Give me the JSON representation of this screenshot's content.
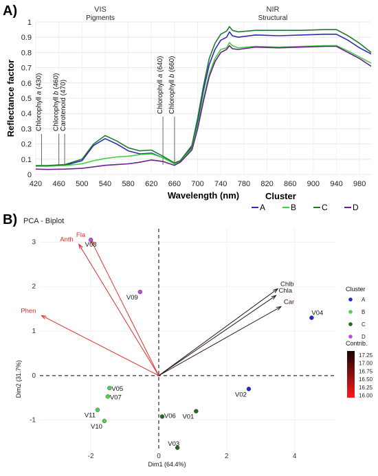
{
  "panel_a": {
    "label": "A)",
    "vis_title": "VIS",
    "vis_sub": "Pigments",
    "nir_title": "NIR",
    "nir_sub": "Structural",
    "pigments": [
      {
        "pre": "Chlorophyll ",
        "it": "a",
        "post": " (430)",
        "wl": 430
      },
      {
        "pre": "Chlorophyll ",
        "it": "b",
        "post": " (460)",
        "wl": 460
      },
      {
        "pre": "Carotenoid (470)",
        "it": "",
        "post": "",
        "wl": 470
      },
      {
        "pre": "Chlorophyll ",
        "it": "a",
        "post": " (640)",
        "wl": 640
      },
      {
        "pre": "Chlorophyll ",
        "it": "b",
        "post": " (660)",
        "wl": 660
      }
    ]
  },
  "panel_b": {
    "label": "B)",
    "title": "PCA - Biplot",
    "cluster_legend_title": "Cluster",
    "contrib_legend_title": "Contrib.",
    "contrib_ticks": [
      "17.25",
      "17.00",
      "16.75",
      "16.50",
      "16.25",
      "16.00"
    ]
  },
  "chart_data": [
    {
      "type": "line",
      "xlabel": "Wavelength (nm)",
      "ylabel": "Reflectance factor",
      "xlim": [
        420,
        1000
      ],
      "ylim": [
        0,
        1
      ],
      "xticks": [
        420,
        460,
        500,
        540,
        580,
        620,
        660,
        700,
        740,
        780,
        820,
        860,
        900,
        940,
        980
      ],
      "yticks": [
        0,
        0.1,
        0.2,
        0.3,
        0.4,
        0.5,
        0.6,
        0.7,
        0.8,
        0.9,
        1
      ],
      "legend_title": "Cluster",
      "series": [
        {
          "name": "A",
          "color": "#2b2bb5",
          "x": [
            420,
            440,
            470,
            500,
            520,
            540,
            560,
            580,
            600,
            620,
            640,
            660,
            670,
            690,
            700,
            710,
            720,
            730,
            740,
            750,
            755,
            760,
            770,
            800,
            840,
            880,
            920,
            940,
            960,
            980,
            1000
          ],
          "y": [
            0.055,
            0.055,
            0.06,
            0.09,
            0.19,
            0.235,
            0.2,
            0.155,
            0.135,
            0.14,
            0.11,
            0.075,
            0.09,
            0.18,
            0.35,
            0.55,
            0.72,
            0.82,
            0.88,
            0.9,
            0.935,
            0.91,
            0.9,
            0.915,
            0.91,
            0.915,
            0.92,
            0.92,
            0.88,
            0.83,
            0.79
          ]
        },
        {
          "name": "B",
          "color": "#3ecf3e",
          "x": [
            420,
            440,
            470,
            500,
            520,
            540,
            560,
            580,
            600,
            620,
            640,
            660,
            670,
            690,
            700,
            710,
            720,
            730,
            740,
            750,
            755,
            760,
            770,
            800,
            840,
            880,
            920,
            940,
            960,
            980,
            1000
          ],
          "y": [
            0.055,
            0.055,
            0.058,
            0.07,
            0.09,
            0.105,
            0.115,
            0.12,
            0.13,
            0.135,
            0.11,
            0.07,
            0.085,
            0.17,
            0.32,
            0.5,
            0.66,
            0.76,
            0.82,
            0.83,
            0.865,
            0.845,
            0.83,
            0.84,
            0.835,
            0.84,
            0.845,
            0.845,
            0.81,
            0.77,
            0.73
          ]
        },
        {
          "name": "C",
          "color": "#1f7a2e",
          "x": [
            420,
            440,
            470,
            500,
            520,
            540,
            560,
            580,
            600,
            620,
            640,
            660,
            670,
            690,
            700,
            710,
            720,
            730,
            740,
            750,
            755,
            760,
            770,
            800,
            840,
            880,
            920,
            940,
            960,
            980,
            1000
          ],
          "y": [
            0.058,
            0.058,
            0.065,
            0.1,
            0.2,
            0.255,
            0.22,
            0.175,
            0.155,
            0.16,
            0.12,
            0.075,
            0.09,
            0.19,
            0.37,
            0.58,
            0.76,
            0.86,
            0.92,
            0.94,
            0.97,
            0.945,
            0.935,
            0.945,
            0.945,
            0.945,
            0.95,
            0.95,
            0.91,
            0.86,
            0.8
          ]
        },
        {
          "name": "D",
          "color": "#6a1f8a",
          "x": [
            420,
            440,
            470,
            500,
            520,
            540,
            560,
            580,
            600,
            620,
            640,
            660,
            670,
            690,
            700,
            710,
            720,
            730,
            740,
            750,
            755,
            760,
            770,
            800,
            840,
            880,
            920,
            940,
            960,
            980,
            1000
          ],
          "y": [
            0.035,
            0.033,
            0.035,
            0.04,
            0.05,
            0.06,
            0.065,
            0.07,
            0.08,
            0.095,
            0.085,
            0.06,
            0.08,
            0.16,
            0.3,
            0.48,
            0.64,
            0.74,
            0.8,
            0.82,
            0.845,
            0.825,
            0.82,
            0.835,
            0.83,
            0.835,
            0.84,
            0.84,
            0.8,
            0.76,
            0.71
          ]
        }
      ]
    },
    {
      "type": "scatter",
      "title": "PCA - Biplot",
      "xlabel": "Dim1 (64.4%)",
      "ylabel": "Dim2 (31.7%)",
      "xlim": [
        -3.5,
        5.2
      ],
      "ylim": [
        -1.7,
        3.3
      ],
      "xticks": [
        -2,
        0,
        2,
        4
      ],
      "yticks": [
        -1,
        0,
        1,
        2,
        3
      ],
      "points": [
        {
          "label": "V01",
          "x": 1.1,
          "y": -0.8,
          "cluster": "C"
        },
        {
          "label": "V02",
          "x": 2.65,
          "y": -0.3,
          "cluster": "A"
        },
        {
          "label": "V03",
          "x": 0.55,
          "y": -1.62,
          "cluster": "C"
        },
        {
          "label": "V04",
          "x": 4.5,
          "y": 1.3,
          "cluster": "A"
        },
        {
          "label": "V05",
          "x": -1.45,
          "y": -0.28,
          "cluster": "B"
        },
        {
          "label": "V06",
          "x": 0.1,
          "y": -0.92,
          "cluster": "C"
        },
        {
          "label": "V07",
          "x": -1.5,
          "y": -0.47,
          "cluster": "B"
        },
        {
          "label": "V08",
          "x": -2.0,
          "y": 3.05,
          "cluster": "D"
        },
        {
          "label": "V09",
          "x": -0.55,
          "y": 1.88,
          "cluster": "D"
        },
        {
          "label": "V10",
          "x": -1.6,
          "y": -1.02,
          "cluster": "B"
        },
        {
          "label": "V11",
          "x": -1.8,
          "y": -0.77,
          "cluster": "B"
        }
      ],
      "vectors": [
        {
          "name": "Fla",
          "x": -2.0,
          "y": 3.05,
          "contrib": 16.0
        },
        {
          "name": "Anth",
          "x": -2.35,
          "y": 2.95,
          "contrib": 16.05
        },
        {
          "name": "Phen",
          "x": -3.45,
          "y": 1.35,
          "contrib": 16.0
        },
        {
          "name": "Chlb",
          "x": 3.5,
          "y": 1.95,
          "contrib": 17.25
        },
        {
          "name": "Chla",
          "x": 3.45,
          "y": 1.8,
          "contrib": 17.15
        },
        {
          "name": "Car",
          "x": 3.6,
          "y": 1.55,
          "contrib": 17.1
        }
      ],
      "clusters": [
        {
          "name": "A",
          "color": "#1f2bd1"
        },
        {
          "name": "B",
          "color": "#4fd14f"
        },
        {
          "name": "C",
          "color": "#1e6b27"
        },
        {
          "name": "D",
          "color": "#b94fd6"
        }
      ],
      "contrib_range": [
        16.0,
        17.25
      ]
    }
  ]
}
